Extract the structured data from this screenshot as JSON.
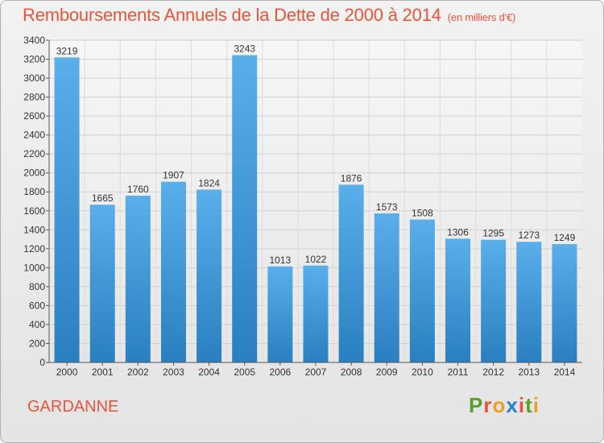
{
  "header": {
    "title": "Remboursements Annuels de la Dette de 2000 à 2014",
    "subtitle": "(en milliers d'€)"
  },
  "footer": {
    "city": "GARDANNE",
    "logo_letters": [
      "P",
      "r",
      "o",
      "x",
      "i",
      "t",
      "i"
    ],
    "logo_colors": [
      "#5aa02c",
      "#e8543a",
      "#f0a020",
      "#2a7fd0",
      "#e8543a",
      "#5aa02c",
      "#f0a020"
    ]
  },
  "chart_data": {
    "type": "bar",
    "categories": [
      "2000",
      "2001",
      "2002",
      "2003",
      "2004",
      "2005",
      "2006",
      "2007",
      "2008",
      "2009",
      "2010",
      "2011",
      "2012",
      "2013",
      "2014"
    ],
    "values": [
      3219,
      1665,
      1760,
      1907,
      1824,
      3243,
      1013,
      1022,
      1876,
      1573,
      1508,
      1306,
      1295,
      1273,
      1249
    ],
    "ylim": [
      0,
      3400
    ],
    "yticks": [
      0,
      200,
      400,
      600,
      800,
      1000,
      1200,
      1400,
      1600,
      1800,
      2000,
      2200,
      2400,
      2600,
      2800,
      3000,
      3200,
      3400
    ],
    "grid": true,
    "bar_color_top": "#5aaeea",
    "bar_color_bottom": "#2a7fc0"
  }
}
